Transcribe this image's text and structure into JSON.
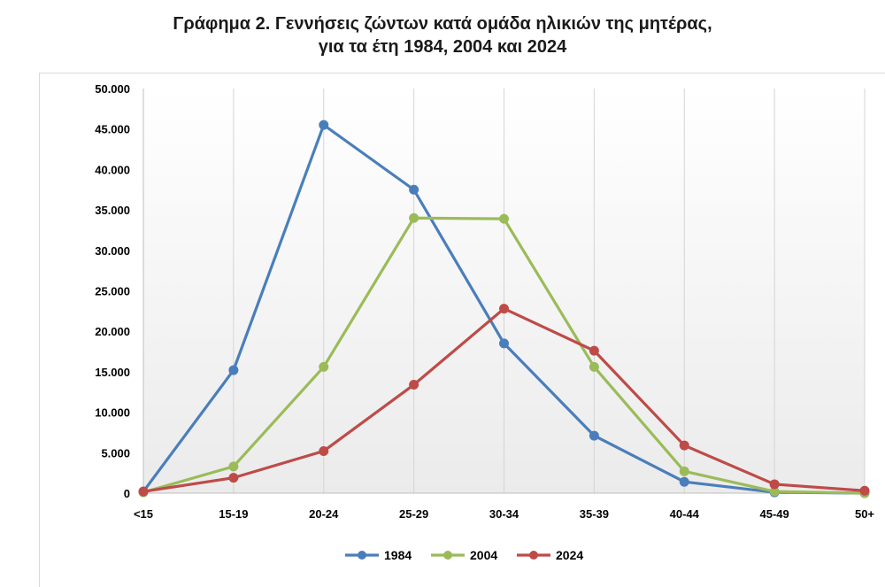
{
  "chart_data": {
    "type": "line",
    "title_line1": "Γράφημα 2.  Γεννήσεις ζώντων κατά ομάδα ηλικιών της μητέρας,",
    "title_line2": "για τα έτη 1984, 2004 και 2024",
    "categories": [
      "<15",
      "15-19",
      "20-24",
      "25-29",
      "30-34",
      "35-39",
      "40-44",
      "45-49",
      "50+"
    ],
    "y_ticks": [
      "0",
      "5.000",
      "10.000",
      "15.000",
      "20.000",
      "25.000",
      "30.000",
      "35.000",
      "40.000",
      "45.000",
      "50.000"
    ],
    "ylim": [
      0,
      50000
    ],
    "grid": "vertical",
    "legend_position": "bottom",
    "series": [
      {
        "name": "1984",
        "color": "#4a7ebb",
        "values": [
          200,
          15200,
          45500,
          37500,
          18500,
          7100,
          1400,
          100,
          0
        ]
      },
      {
        "name": "2004",
        "color": "#9bbb59",
        "values": [
          100,
          3300,
          15600,
          34000,
          33900,
          15600,
          2700,
          200,
          0
        ]
      },
      {
        "name": "2024",
        "color": "#be4b48",
        "values": [
          200,
          1900,
          5200,
          13400,
          22800,
          17600,
          5900,
          1100,
          300
        ]
      }
    ]
  }
}
